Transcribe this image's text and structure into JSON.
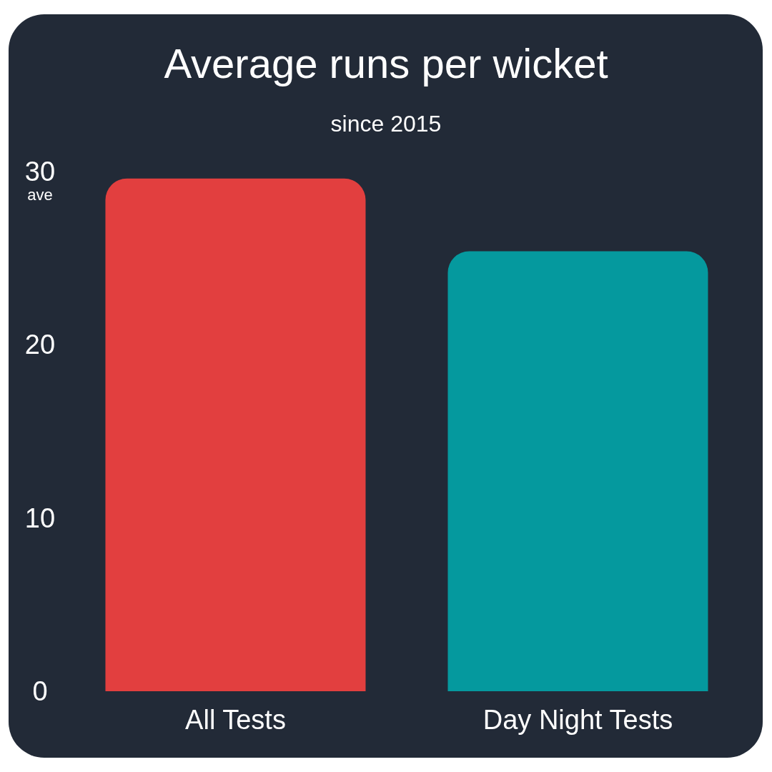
{
  "chart_data": {
    "type": "bar",
    "title": "Average runs per wicket",
    "subtitle": "since 2015",
    "ylabel": "ave",
    "categories": [
      "All Tests",
      "Day Night Tests"
    ],
    "values": [
      29.6,
      25.4
    ],
    "colors": [
      "#e23f3f",
      "#05999e"
    ],
    "ylim": [
      0,
      30
    ],
    "yticks": [
      0,
      10,
      20,
      30
    ]
  }
}
